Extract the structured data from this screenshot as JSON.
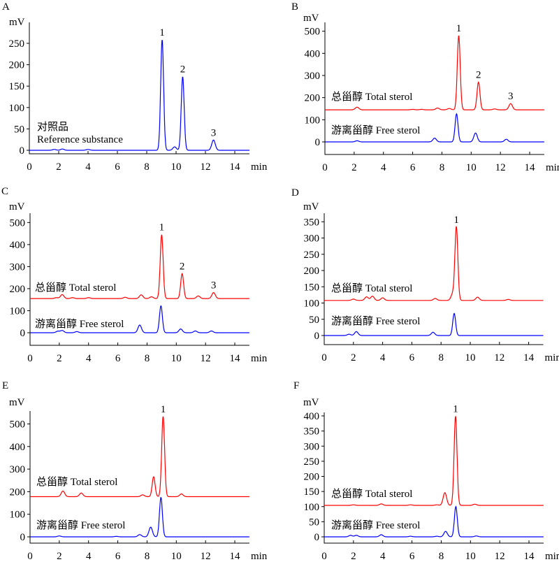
{
  "chart_data": [
    {
      "id": "A",
      "type": "line",
      "panel_label": "A",
      "ylabel": "mV",
      "xlabel": "min",
      "xlim": [
        0,
        15
      ],
      "ylim": [
        -5,
        300
      ],
      "xticks": [
        0,
        2,
        4,
        6,
        8,
        10,
        12,
        14
      ],
      "yticks": [
        0,
        50,
        100,
        150,
        200,
        250
      ],
      "annotation": [
        "对照品",
        "Reference substance"
      ],
      "series": [
        {
          "name": "Reference substance",
          "color": "#0000ff",
          "baseline": 0,
          "peaks": [
            [
              1.7,
              2
            ],
            [
              2.25,
              3
            ],
            [
              4.0,
              2
            ],
            [
              9.05,
              258
            ],
            [
              9.9,
              8
            ],
            [
              10.45,
              172
            ],
            [
              12.55,
              24
            ]
          ],
          "peak_labels": [
            {
              "label": "1",
              "rt": 9.05,
              "value": 258
            },
            {
              "label": "2",
              "rt": 10.45,
              "value": 172
            },
            {
              "label": "3",
              "rt": 12.55,
              "value": 24
            }
          ]
        }
      ]
    },
    {
      "id": "B",
      "type": "line",
      "panel_label": "B",
      "ylabel": "mV",
      "xlabel": "min",
      "xlim": [
        0,
        15
      ],
      "ylim": [
        -55,
        540
      ],
      "xticks": [
        0,
        2,
        4,
        6,
        8,
        10,
        12,
        14
      ],
      "yticks": [
        0,
        100,
        200,
        300,
        400,
        500
      ],
      "series": [
        {
          "name": "总甾醇 Total sterol",
          "color": "#ff0000",
          "baseline": 145,
          "peaks": [
            [
              2.2,
              12
            ],
            [
              6.0,
              2
            ],
            [
              6.6,
              2
            ],
            [
              7.7,
              8
            ],
            [
              8.5,
              6
            ],
            [
              9.15,
              335
            ],
            [
              10.5,
              125
            ],
            [
              11.6,
              4
            ],
            [
              12.7,
              28
            ]
          ],
          "peak_labels": [
            {
              "label": "1",
              "rt": 9.15,
              "value": 480
            },
            {
              "label": "2",
              "rt": 10.5,
              "value": 270
            },
            {
              "label": "3",
              "rt": 12.7,
              "value": 173
            }
          ]
        },
        {
          "name": "游离甾醇 Free sterol",
          "color": "#0000ff",
          "baseline": 0,
          "peaks": [
            [
              2.2,
              5
            ],
            [
              7.5,
              17
            ],
            [
              9.0,
              127
            ],
            [
              10.3,
              40
            ],
            [
              12.4,
              12
            ]
          ],
          "peak_labels": []
        }
      ]
    },
    {
      "id": "C",
      "type": "line",
      "panel_label": "C",
      "ylabel": "mV",
      "xlabel": "min",
      "xlim": [
        0,
        15
      ],
      "ylim": [
        -55,
        555
      ],
      "xticks": [
        0,
        2,
        4,
        6,
        8,
        10,
        12,
        14
      ],
      "yticks": [
        0,
        100,
        200,
        300,
        400,
        500
      ],
      "series": [
        {
          "name": "总甾醇 Total sterol",
          "color": "#ff0000",
          "baseline": 155,
          "peaks": [
            [
              1.8,
              4
            ],
            [
              2.2,
              18
            ],
            [
              2.9,
              4
            ],
            [
              4.0,
              4
            ],
            [
              6.5,
              6
            ],
            [
              7.6,
              17
            ],
            [
              8.3,
              8
            ],
            [
              9.0,
              290
            ],
            [
              10.4,
              113
            ],
            [
              11.5,
              12
            ],
            [
              12.55,
              27
            ]
          ],
          "peak_labels": [
            {
              "label": "1",
              "rt": 9.0,
              "value": 445
            },
            {
              "label": "2",
              "rt": 10.4,
              "value": 268
            },
            {
              "label": "3",
              "rt": 12.55,
              "value": 182
            }
          ]
        },
        {
          "name": "游离甾醇 Free sterol",
          "color": "#0000ff",
          "baseline": 0,
          "peaks": [
            [
              1.9,
              7
            ],
            [
              2.2,
              10
            ],
            [
              3.2,
              5
            ],
            [
              7.5,
              35
            ],
            [
              8.95,
              122
            ],
            [
              10.3,
              17
            ],
            [
              11.3,
              8
            ],
            [
              12.4,
              8
            ]
          ],
          "peak_labels": []
        }
      ]
    },
    {
      "id": "D",
      "type": "line",
      "panel_label": "D",
      "ylabel": "mV",
      "xlabel": "min",
      "xlim": [
        0,
        15
      ],
      "ylim": [
        -30,
        375
      ],
      "xticks": [
        0,
        2,
        4,
        6,
        8,
        10,
        12,
        14
      ],
      "yticks": [
        0,
        50,
        100,
        150,
        200,
        250,
        300,
        350
      ],
      "series": [
        {
          "name": "总甾醇 Total sterol",
          "color": "#ff0000",
          "baseline": 108,
          "peaks": [
            [
              2.0,
              4
            ],
            [
              2.9,
              11
            ],
            [
              3.3,
              13
            ],
            [
              4.0,
              8
            ],
            [
              7.6,
              6
            ],
            [
              8.8,
              20
            ],
            [
              9.05,
              225
            ],
            [
              10.5,
              10
            ],
            [
              12.6,
              3
            ]
          ],
          "peak_labels": [
            {
              "label": "1",
              "rt": 9.05,
              "value": 333
            }
          ]
        },
        {
          "name": "游离甾醇 Free sterol",
          "color": "#0000ff",
          "baseline": 0,
          "peaks": [
            [
              1.7,
              4
            ],
            [
              2.2,
              12
            ],
            [
              7.45,
              10
            ],
            [
              8.9,
              68
            ]
          ],
          "peak_labels": []
        }
      ]
    },
    {
      "id": "E",
      "type": "line",
      "panel_label": "E",
      "ylabel": "mV",
      "xlabel": "min",
      "xlim": [
        0,
        15
      ],
      "ylim": [
        -30,
        560
      ],
      "xticks": [
        0,
        2,
        4,
        6,
        8,
        10,
        12,
        14
      ],
      "yticks": [
        0,
        100,
        200,
        300,
        400,
        500
      ],
      "series": [
        {
          "name": "总甾醇 Total sterol",
          "color": "#ff0000",
          "baseline": 178,
          "peaks": [
            [
              2.25,
              25
            ],
            [
              3.5,
              16
            ],
            [
              7.7,
              8
            ],
            [
              8.45,
              88
            ],
            [
              9.1,
              355
            ],
            [
              10.35,
              12
            ]
          ],
          "peak_labels": [
            {
              "label": "1",
              "rt": 9.1,
              "value": 533
            }
          ]
        },
        {
          "name": "游离甾醇 Free sterol",
          "color": "#0000ff",
          "baseline": 0,
          "peaks": [
            [
              2.0,
              4
            ],
            [
              5.9,
              2
            ],
            [
              7.5,
              10
            ],
            [
              8.25,
              43
            ],
            [
              8.95,
              175
            ]
          ],
          "peak_labels": []
        }
      ]
    },
    {
      "id": "F",
      "type": "line",
      "panel_label": "F",
      "ylabel": "mV",
      "xlabel": "min",
      "xlim": [
        0,
        15
      ],
      "ylim": [
        -20,
        410
      ],
      "xticks": [
        0,
        2,
        4,
        6,
        8,
        10,
        12,
        14
      ],
      "yticks": [
        0,
        50,
        100,
        150,
        200,
        250,
        300,
        350,
        400
      ],
      "series": [
        {
          "name": "总甾醇 Total sterol",
          "color": "#ff0000",
          "baseline": 104,
          "peaks": [
            [
              2.0,
              2
            ],
            [
              3.9,
              5
            ],
            [
              5.9,
              2
            ],
            [
              7.7,
              2
            ],
            [
              8.25,
              42
            ],
            [
              8.98,
              295
            ],
            [
              10.3,
              4
            ]
          ],
          "peak_labels": [
            {
              "label": "1",
              "rt": 8.98,
              "value": 399
            }
          ]
        },
        {
          "name": "游离甾醇 Free sterol",
          "color": "#0000ff",
          "baseline": 0,
          "peaks": [
            [
              1.8,
              5
            ],
            [
              2.2,
              5
            ],
            [
              3.9,
              7
            ],
            [
              5.9,
              2
            ],
            [
              7.7,
              2
            ],
            [
              8.3,
              18
            ],
            [
              9.0,
              100
            ],
            [
              10.4,
              3
            ]
          ],
          "peak_labels": []
        }
      ]
    }
  ]
}
